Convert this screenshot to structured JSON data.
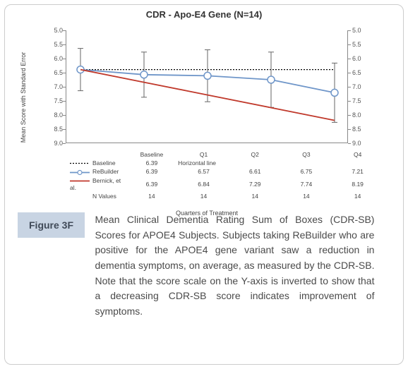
{
  "chart": {
    "type": "line",
    "title": "CDR - Apo-E4 Gene (N=14)",
    "xaxis_label": "Quarters of Treatment",
    "yaxis_label": "Mean Score with Standard Error",
    "categories": [
      "Baseline",
      "Q1",
      "Q2",
      "Q3",
      "Q4"
    ],
    "ylim": [
      5.0,
      9.0
    ],
    "ytick_step": 0.5,
    "yticks": [
      "5.0",
      "5.5",
      "6.0",
      "6.5",
      "7.0",
      "7.5",
      "8.0",
      "8.5",
      "9.0"
    ],
    "y_inverted": true,
    "background_color": "#ffffff",
    "axis_color": "#888888",
    "tick_font_size": 9,
    "title_fontsize": 13,
    "series": [
      {
        "name": "Baseline",
        "legend_note": "Horizontal line",
        "type": "line",
        "values": [
          6.39,
          6.39,
          6.39,
          6.39,
          6.39
        ],
        "color": "#000000",
        "dash": "2,2",
        "line_width": 1.2,
        "markers": false
      },
      {
        "name": "ReBuilder",
        "type": "line",
        "values": [
          6.39,
          6.57,
          6.61,
          6.75,
          7.21
        ],
        "errors": [
          0.75,
          0.8,
          0.92,
          0.98,
          1.05
        ],
        "color": "#6f96c9",
        "line_width": 1.8,
        "dash": "none",
        "markers": true,
        "marker_style": "circle-open",
        "marker_color": "#6f96c9",
        "marker_size": 5
      },
      {
        "name": "Bernick, et al.",
        "type": "line",
        "values": [
          6.39,
          6.84,
          7.29,
          7.74,
          8.19
        ],
        "color": "#c0392b",
        "line_width": 1.8,
        "dash": "none",
        "markers": false
      }
    ],
    "n_row": {
      "label": "N Values",
      "values": [
        "14",
        "14",
        "14",
        "14",
        "14"
      ]
    }
  },
  "figure": {
    "badge": "Figure 3F",
    "caption": "Mean Clinical Dementia Rating Sum of Boxes (CDR-SB) Scores for APOE4 Subjects. Subjects taking ReBuilder who are positive for the APOE4 gene variant saw a reduction in dementia symptoms, on average, as measured by the CDR-SB.  Note that the score scale on the Y-axis is inverted to show that a decreasing CDR-SB score indicates improvement of symptoms."
  },
  "colors": {
    "frame_border": "#cccccc",
    "badge_bg": "#c8d4e3",
    "badge_text": "#404a58",
    "text": "#4a4a4a"
  }
}
